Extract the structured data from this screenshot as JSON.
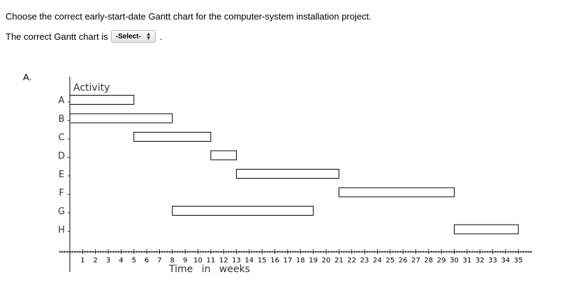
{
  "question": {
    "prompt": "Choose the correct early-start-date Gantt chart for the computer-system installation project.",
    "answer_prefix": "The correct Gantt chart is",
    "select_value": "-Select-",
    "suffix": "."
  },
  "option_label": "A.",
  "chart_data": {
    "type": "gantt",
    "ylabel": "Activity",
    "xlabel": "Time in weeks",
    "xlim": [
      0,
      36
    ],
    "x_ticks": [
      1,
      2,
      3,
      4,
      5,
      6,
      7,
      8,
      9,
      10,
      11,
      12,
      13,
      14,
      15,
      16,
      17,
      18,
      19,
      20,
      21,
      22,
      23,
      24,
      25,
      26,
      27,
      28,
      29,
      30,
      31,
      32,
      33,
      34,
      35
    ],
    "activities": [
      {
        "name": "A",
        "start": 0,
        "end": 5
      },
      {
        "name": "B",
        "start": 0,
        "end": 8
      },
      {
        "name": "C",
        "start": 5,
        "end": 11
      },
      {
        "name": "D",
        "start": 11,
        "end": 13
      },
      {
        "name": "E",
        "start": 13,
        "end": 21
      },
      {
        "name": "F",
        "start": 21,
        "end": 30
      },
      {
        "name": "G",
        "start": 8,
        "end": 19
      },
      {
        "name": "H",
        "start": 30,
        "end": 35
      }
    ]
  }
}
